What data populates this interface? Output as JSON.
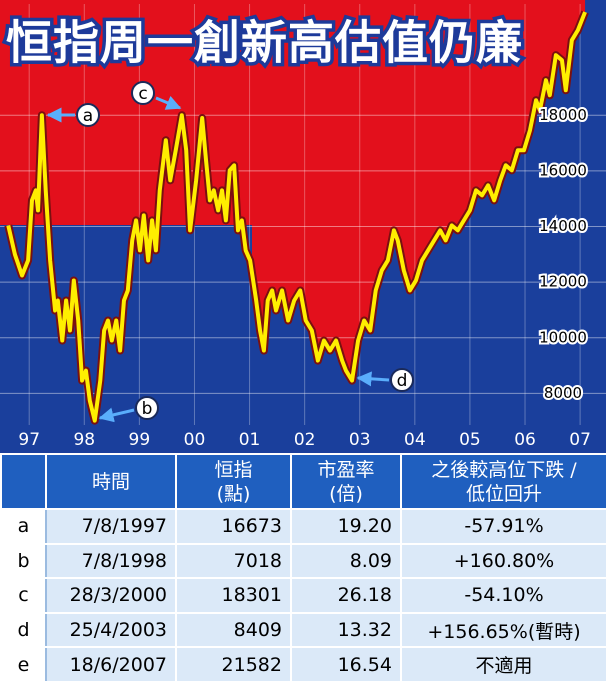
{
  "chart_data": {
    "type": "line",
    "title": "恒指周一創新高估值仍廉",
    "xlim": [
      1996.85,
      2007.85
    ],
    "xticks": [
      {
        "value": 1997.38,
        "label": "97"
      },
      {
        "value": 1998.38,
        "label": "98"
      },
      {
        "value": 1999.38,
        "label": "99"
      },
      {
        "value": 2000.38,
        "label": "00"
      },
      {
        "value": 2001.38,
        "label": "01"
      },
      {
        "value": 2002.38,
        "label": "02"
      },
      {
        "value": 2003.38,
        "label": "03"
      },
      {
        "value": 2004.38,
        "label": "04"
      },
      {
        "value": 2005.38,
        "label": "05"
      },
      {
        "value": 2006.38,
        "label": "06"
      },
      {
        "value": 2007.38,
        "label": "07"
      }
    ],
    "ylim": [
      6000,
      22000
    ],
    "yticks": [
      8000,
      10000,
      12000,
      14000,
      16000,
      18000
    ],
    "grid": true,
    "x": [
      1997.0,
      1997.12,
      1997.25,
      1997.36,
      1997.43,
      1997.5,
      1997.54,
      1997.61,
      1997.68,
      1997.76,
      1997.85,
      1997.9,
      1997.98,
      1998.05,
      1998.12,
      1998.19,
      1998.27,
      1998.34,
      1998.41,
      1998.48,
      1998.57,
      1998.67,
      1998.74,
      1998.81,
      1998.88,
      1998.96,
      1999.03,
      1999.1,
      1999.17,
      1999.25,
      1999.32,
      1999.39,
      1999.46,
      1999.54,
      1999.61,
      1999.68,
      1999.75,
      1999.86,
      1999.94,
      2000.04,
      2000.15,
      2000.23,
      2000.3,
      2000.41,
      2000.52,
      2000.59,
      2000.66,
      2000.73,
      2000.81,
      2000.88,
      2000.95,
      2001.02,
      2001.1,
      2001.17,
      2001.24,
      2001.31,
      2001.39,
      2001.5,
      2001.57,
      2001.64,
      2001.71,
      2001.79,
      2001.86,
      2001.97,
      2002.08,
      2002.19,
      2002.3,
      2002.4,
      2002.51,
      2002.62,
      2002.73,
      2002.84,
      2002.95,
      2003.06,
      2003.13,
      2003.24,
      2003.35,
      2003.46,
      2003.57,
      2003.67,
      2003.78,
      2003.89,
      2004.0,
      2004.07,
      2004.18,
      2004.29,
      2004.4,
      2004.51,
      2004.62,
      2004.73,
      2004.84,
      2004.94,
      2005.05,
      2005.16,
      2005.27,
      2005.38,
      2005.49,
      2005.6,
      2005.71,
      2005.82,
      2005.93,
      2006.03,
      2006.14,
      2006.25,
      2006.36,
      2006.47,
      2006.58,
      2006.65,
      2006.76,
      2006.83,
      2006.94,
      2007.05,
      2007.12,
      2007.23,
      2007.34,
      2007.47
    ],
    "series": [
      {
        "color": "#ffee00",
        "values": [
          14040,
          13000,
          12240,
          12780,
          14940,
          15300,
          14580,
          18000,
          15300,
          12780,
          10980,
          11340,
          9900,
          11340,
          10260,
          12060,
          10620,
          8460,
          8820,
          7740,
          7020,
          8460,
          10260,
          10620,
          9900,
          10620,
          9540,
          11340,
          11700,
          13500,
          14220,
          13140,
          14400,
          12780,
          14220,
          13140,
          15300,
          17100,
          15660,
          16740,
          18000,
          16740,
          13860,
          15660,
          17900,
          16380,
          14940,
          15300,
          14580,
          15300,
          14220,
          16020,
          16200,
          13860,
          14220,
          13140,
          12780,
          11340,
          10260,
          9540,
          11340,
          11700,
          10980,
          11700,
          10620,
          11340,
          11700,
          10620,
          10260,
          9180,
          9900,
          9540,
          9900,
          9180,
          8820,
          8460,
          9900,
          10620,
          10260,
          11700,
          12420,
          12780,
          13860,
          13500,
          12420,
          11700,
          12060,
          12780,
          13140,
          13500,
          13860,
          13500,
          14040,
          13860,
          14220,
          14580,
          15300,
          15120,
          15480,
          14940,
          15660,
          16200,
          16020,
          16740,
          16740,
          17460,
          18540,
          18180,
          19260,
          18720,
          20160,
          19980,
          18900,
          20700,
          21060,
          21710
        ]
      }
    ],
    "annotations": [
      "a",
      "b",
      "c",
      "d"
    ]
  },
  "table": {
    "header": [
      [
        "時間"
      ],
      [
        "恒指",
        "(點)"
      ],
      [
        "市盈率",
        "(倍)"
      ],
      [
        "之後較高位下跌 /",
        "低位回升"
      ]
    ],
    "rows": [
      [
        "a",
        "7/8/1997",
        "16673",
        "19.20",
        "-57.91%"
      ],
      [
        "b",
        "7/8/1998",
        "7018",
        "8.09",
        "+160.80%"
      ],
      [
        "c",
        "28/3/2000",
        "18301",
        "26.18",
        "-54.10%"
      ],
      [
        "d",
        "25/4/2003",
        "8409",
        "13.32",
        "+156.65%(暫時)"
      ],
      [
        "e",
        "18/6/2007",
        "21582",
        "16.54",
        "不適用"
      ]
    ]
  }
}
